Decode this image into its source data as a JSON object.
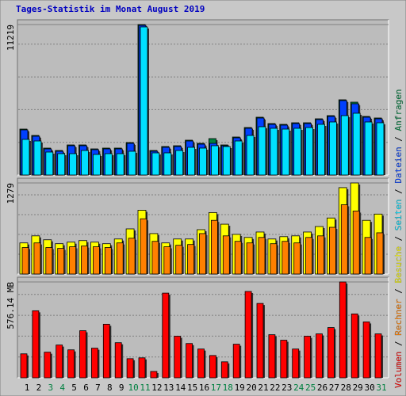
{
  "title": "Tages-Statistik im Monat August 2019",
  "chart_data": [
    {
      "type": "bar",
      "ylim": [
        0,
        11219
      ],
      "yticks": [
        11219
      ],
      "series": [
        {
          "name": "Anfragen",
          "color": "#008040",
          "values": [
            3425,
            2952,
            2008,
            1831,
            2244,
            2244,
            1949,
            2008,
            2008,
            2421,
            11219,
            1831,
            2126,
            2185,
            2598,
            2362,
            2716,
            2244,
            2834,
            3543,
            4311,
            3838,
            3779,
            3897,
            3897,
            4193,
            4429,
            5610,
            5433,
            4370,
            4252
          ]
        },
        {
          "name": "Dateien",
          "color": "#0040ff",
          "values": [
            3366,
            2893,
            1949,
            1772,
            2185,
            2185,
            1890,
            1949,
            1949,
            2362,
            11160,
            1772,
            2067,
            2126,
            2539,
            2303,
            2362,
            2185,
            2775,
            3484,
            4252,
            3779,
            3720,
            3838,
            3838,
            4134,
            4370,
            5551,
            5315,
            4311,
            4193
          ]
        },
        {
          "name": "Seiten",
          "color": "#00e0ff",
          "values": [
            2657,
            2539,
            1713,
            1594,
            1594,
            1831,
            1535,
            1594,
            1594,
            1772,
            11042,
            1653,
            1653,
            1831,
            2067,
            2008,
            2185,
            2126,
            2539,
            2952,
            3602,
            3484,
            3425,
            3484,
            3543,
            3779,
            3956,
            4429,
            4606,
            3956,
            3897
          ]
        }
      ]
    },
    {
      "type": "bar",
      "ylim": [
        0,
        1279
      ],
      "yticks": [
        1279
      ],
      "series": [
        {
          "name": "Besuche",
          "color": "#ffff00",
          "values": [
            437,
            536,
            481,
            426,
            448,
            470,
            448,
            426,
            492,
            634,
            896,
            568,
            437,
            492,
            492,
            623,
            863,
            700,
            557,
            514,
            590,
            492,
            525,
            536,
            590,
            667,
            787,
            1213,
            1279,
            754,
            842
          ]
        },
        {
          "name": "Rechner",
          "color": "#ff8000",
          "values": [
            372,
            437,
            372,
            361,
            383,
            393,
            383,
            372,
            437,
            503,
            776,
            459,
            383,
            404,
            415,
            568,
            754,
            536,
            459,
            437,
            514,
            426,
            459,
            437,
            514,
            536,
            656,
            973,
            885,
            514,
            579
          ]
        }
      ]
    },
    {
      "type": "bar",
      "ylim": [
        0,
        576.14
      ],
      "yticks": [
        {
          "value": 576.14,
          "label": "576.14 MB"
        }
      ],
      "categories": [
        "1",
        "2",
        "3",
        "4",
        "5",
        "6",
        "7",
        "8",
        "9",
        "10",
        "11",
        "12",
        "13",
        "14",
        "15",
        "16",
        "17",
        "18",
        "19",
        "20",
        "21",
        "22",
        "23",
        "24",
        "25",
        "26",
        "27",
        "28",
        "29",
        "30",
        "31"
      ],
      "category_colors": [
        "#000000",
        "#000000",
        "#008040",
        "#008040",
        "#000000",
        "#000000",
        "#000000",
        "#000000",
        "#000000",
        "#008040",
        "#008040",
        "#000000",
        "#000000",
        "#000000",
        "#000000",
        "#000000",
        "#008040",
        "#008040",
        "#000000",
        "#000000",
        "#000000",
        "#000000",
        "#000000",
        "#008040",
        "#008040",
        "#000000",
        "#000000",
        "#000000",
        "#000000",
        "#000000",
        "#008040"
      ],
      "series": [
        {
          "name": "Volumen",
          "color": "#ff0000",
          "values": [
            144,
            403,
            154,
            197,
            168,
            283,
            178,
            322,
            211,
            115,
            120,
            38,
            509,
            250,
            206,
            173,
            134,
            96,
            202,
            519,
            447,
            259,
            226,
            173,
            250,
            264,
            302,
            576.14,
            384,
            336,
            264
          ]
        }
      ]
    }
  ]
}
